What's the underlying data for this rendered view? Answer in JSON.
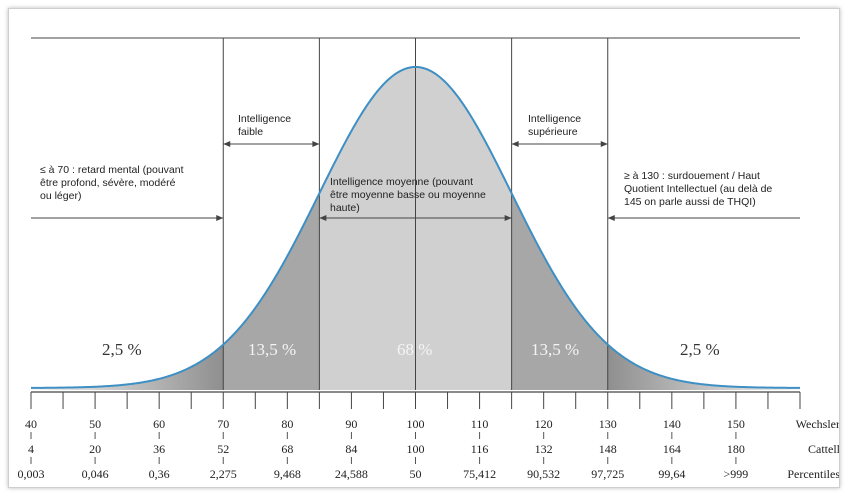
{
  "chart_data": {
    "type": "area",
    "title": "",
    "distribution": {
      "mean": 100,
      "sd": 15
    },
    "scales": [
      {
        "name": "Wechsler",
        "values": [
          "40",
          "50",
          "60",
          "70",
          "80",
          "90",
          "100",
          "110",
          "120",
          "130",
          "140",
          "150"
        ]
      },
      {
        "name": "Cattell",
        "values": [
          "4",
          "20",
          "36",
          "52",
          "68",
          "84",
          "100",
          "116",
          "132",
          "148",
          "164",
          "180"
        ]
      },
      {
        "name": "Percentiles",
        "values": [
          "0,003",
          "0,046",
          "0,36",
          "2,275",
          "9,468",
          "24,588",
          "50",
          "75,412",
          "90,532",
          "97,725",
          "99,64",
          ">999"
        ]
      }
    ],
    "x_range": [
      40,
      160
    ],
    "dividers": [
      70,
      85,
      115,
      130
    ],
    "regions": [
      {
        "from": 40,
        "to": 70,
        "percent": "2,5 %",
        "shade": "#ffffff"
      },
      {
        "from": 70,
        "to": 85,
        "percent": "13,5 %",
        "shade": "#a7a7a7"
      },
      {
        "from": 85,
        "to": 115,
        "percent": "68 %",
        "shade": "#d0d0d0"
      },
      {
        "from": 115,
        "to": 130,
        "percent": "13,5 %",
        "shade": "#a7a7a7"
      },
      {
        "from": 130,
        "to": 160,
        "percent": "2,5 %",
        "shade": "#ffffff"
      }
    ],
    "annotations": [
      {
        "id": "low",
        "text": "≤ à 70 : retard mental (pouvant\nêtre profond, sévère, modéré\nou léger)"
      },
      {
        "id": "faible",
        "text": "Intelligence\nfaible"
      },
      {
        "id": "moyenne",
        "text": "Intelligence moyenne (pouvant\nêtre moyenne basse ou moyenne\nhaute)"
      },
      {
        "id": "superieure",
        "text": "Intelligence\nsupérieure"
      },
      {
        "id": "high",
        "text": "≥ à 130 : surdouement / Haut\nQuotient Intellectuel (au delà de\n145 on parle aussi de THQI)"
      }
    ],
    "colors": {
      "curve": "#3d8fc4",
      "outer_tail": "#8f8f8f",
      "line": "#444444"
    }
  }
}
